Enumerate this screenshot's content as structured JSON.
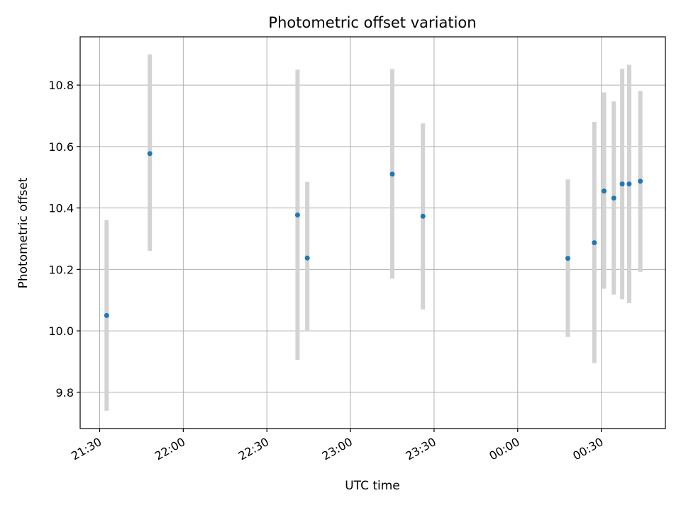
{
  "chart_data": {
    "type": "scatter",
    "title": "Photometric offset variation",
    "xlabel": "UTC time",
    "ylabel": "Photometric offset",
    "x_ticks": [
      "21:30",
      "22:00",
      "22:30",
      "23:00",
      "23:30",
      "00:00",
      "00:30"
    ],
    "y_ticks": [
      "9.8",
      "10.0",
      "10.2",
      "10.4",
      "10.6",
      "10.8"
    ],
    "xlim": [
      "2000-01-01T21:23",
      "2000-01-02T00:53"
    ],
    "ylim": [
      9.682,
      10.957
    ],
    "grid": true,
    "points": [
      {
        "x": "2000-01-01T21:32:30",
        "y": 10.05,
        "low": 9.74,
        "high": 10.36
      },
      {
        "x": "2000-01-01T21:48:00",
        "y": 10.577,
        "low": 10.26,
        "high": 10.9
      },
      {
        "x": "2000-01-01T22:41:00",
        "y": 10.377,
        "low": 9.905,
        "high": 10.85
      },
      {
        "x": "2000-01-01T22:44:30",
        "y": 10.237,
        "low": 9.998,
        "high": 10.485
      },
      {
        "x": "2000-01-01T23:15:00",
        "y": 10.51,
        "low": 10.17,
        "high": 10.852
      },
      {
        "x": "2000-01-01T23:26:00",
        "y": 10.373,
        "low": 10.07,
        "high": 10.675
      },
      {
        "x": "2000-01-02T00:18:00",
        "y": 10.236,
        "low": 9.98,
        "high": 10.493
      },
      {
        "x": "2000-01-02T00:27:30",
        "y": 10.287,
        "low": 9.895,
        "high": 10.68
      },
      {
        "x": "2000-01-02T00:31:00",
        "y": 10.455,
        "low": 10.137,
        "high": 10.776
      },
      {
        "x": "2000-01-02T00:34:30",
        "y": 10.432,
        "low": 10.118,
        "high": 10.747
      },
      {
        "x": "2000-01-02T00:37:30",
        "y": 10.478,
        "low": 10.103,
        "high": 10.853
      },
      {
        "x": "2000-01-02T00:40:00",
        "y": 10.478,
        "low": 10.09,
        "high": 10.866
      },
      {
        "x": "2000-01-02T00:44:00",
        "y": 10.487,
        "low": 10.192,
        "high": 10.781
      }
    ],
    "colors": {
      "point": "#1f77b4",
      "errorbar": "#d3d3d3",
      "grid": "#b0b0b0"
    }
  }
}
